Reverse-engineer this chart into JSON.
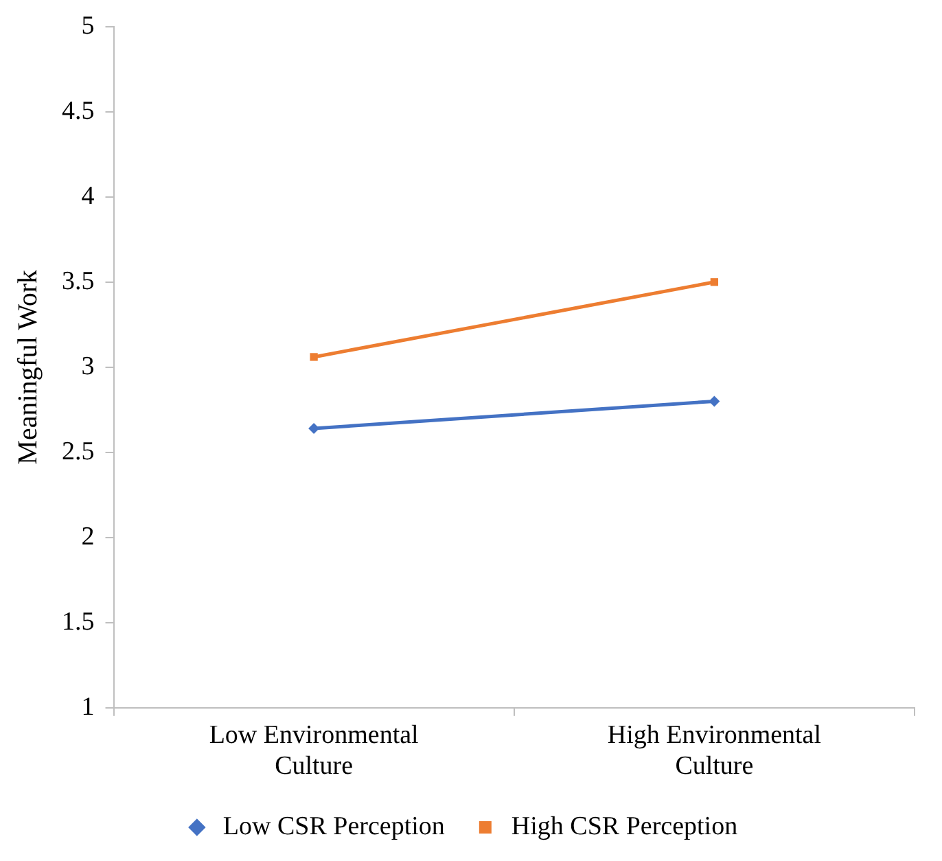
{
  "chart_data": {
    "type": "line",
    "ylabel": "Meaningful Work",
    "categories": [
      "Low Environmental Culture",
      "High Environmental Culture"
    ],
    "series": [
      {
        "name": "Low CSR Perception",
        "color": "#4472c4",
        "marker": "diamond",
        "values": [
          2.64,
          2.8
        ]
      },
      {
        "name": "High CSR Perception",
        "color": "#ed7d31",
        "marker": "square",
        "values": [
          3.06,
          3.5
        ]
      }
    ],
    "ylim": [
      1,
      5
    ],
    "yticks": [
      1,
      1.5,
      2,
      2.5,
      3,
      3.5,
      4,
      4.5,
      5
    ],
    "grid": false,
    "legend": "bottom",
    "line_style": "solid"
  }
}
